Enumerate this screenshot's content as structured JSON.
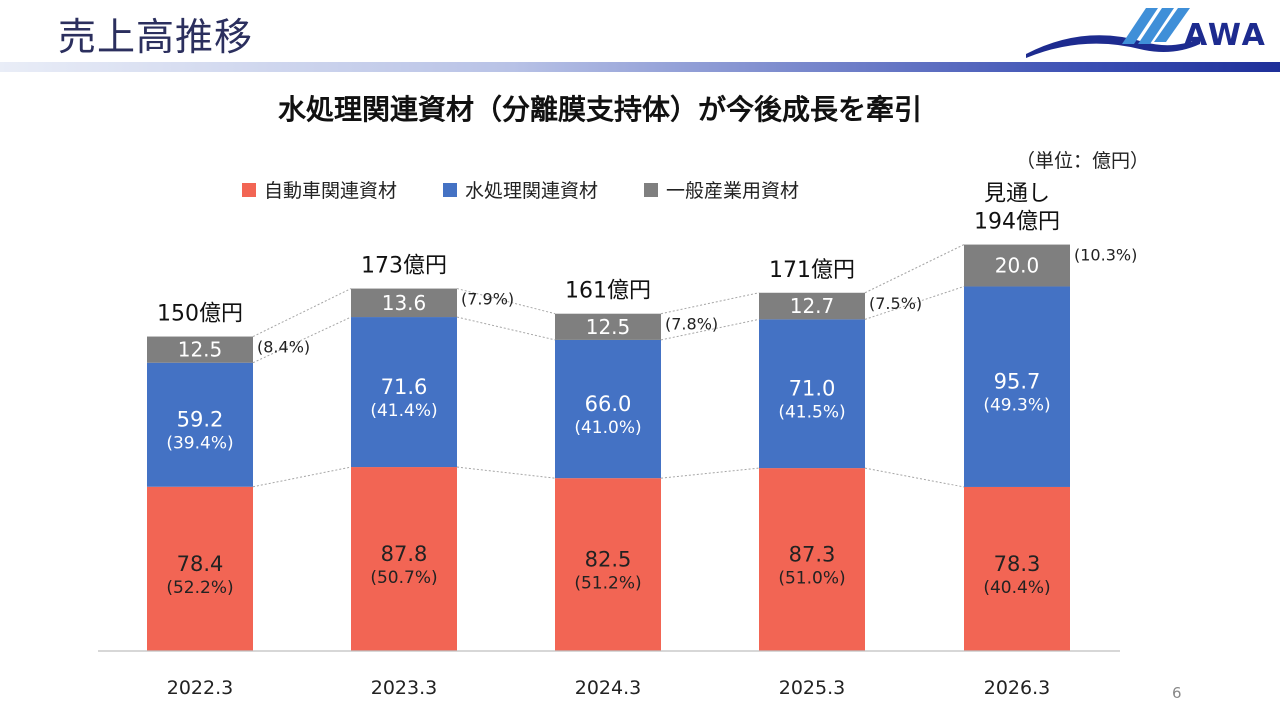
{
  "header": {
    "title": "売上高推移",
    "logo_text": "AWA"
  },
  "page_number": "6",
  "colors": {
    "auto": "#f26554",
    "water": "#4472c4",
    "industrial": "#7f7f7f",
    "connector": "#a6a6a6"
  },
  "chart_data": {
    "type": "bar",
    "stacked": true,
    "title": "水処理関連資材（分離膜支持体）が今後成長を牽引",
    "unit_label": "（単位：億円）",
    "legend_position": "top",
    "categories": [
      "2022.3",
      "2023.3",
      "2024.3",
      "2025.3",
      "2026.3"
    ],
    "series": [
      {
        "name": "自動車関連資材",
        "values": [
          78.4,
          87.8,
          82.5,
          87.3,
          78.3
        ],
        "labels": [
          "78.4",
          "87.8",
          "82.5",
          "87.3",
          "78.3"
        ],
        "shares": [
          "(52.2%)",
          "(50.7%)",
          "(51.2%)",
          "(51.0%)",
          "(40.4%)"
        ]
      },
      {
        "name": "水処理関連資材",
        "values": [
          59.2,
          71.6,
          66.0,
          71.0,
          95.7
        ],
        "labels": [
          "59.2",
          "71.6",
          "66.0",
          "71.0",
          "95.7"
        ],
        "shares": [
          "(39.4%)",
          "(41.4%)",
          "(41.0%)",
          "(41.5%)",
          "(49.3%)"
        ]
      },
      {
        "name": "一般産業用資材",
        "values": [
          12.5,
          13.6,
          12.5,
          12.7,
          20.0
        ],
        "labels": [
          "12.5",
          "13.6",
          "12.5",
          "12.7",
          "20.0"
        ],
        "shares": [
          "(8.4%)",
          "(7.9%)",
          "(7.8%)",
          "(7.5%)",
          "(10.3%)"
        ]
      }
    ],
    "totals": [
      150,
      173,
      161,
      171,
      194
    ],
    "total_labels": [
      "150億円",
      "173億円",
      "161億円",
      "171億円",
      "194億円"
    ],
    "forecast_label": "見通し",
    "ylim": [
      0,
      194
    ],
    "grid": false
  }
}
